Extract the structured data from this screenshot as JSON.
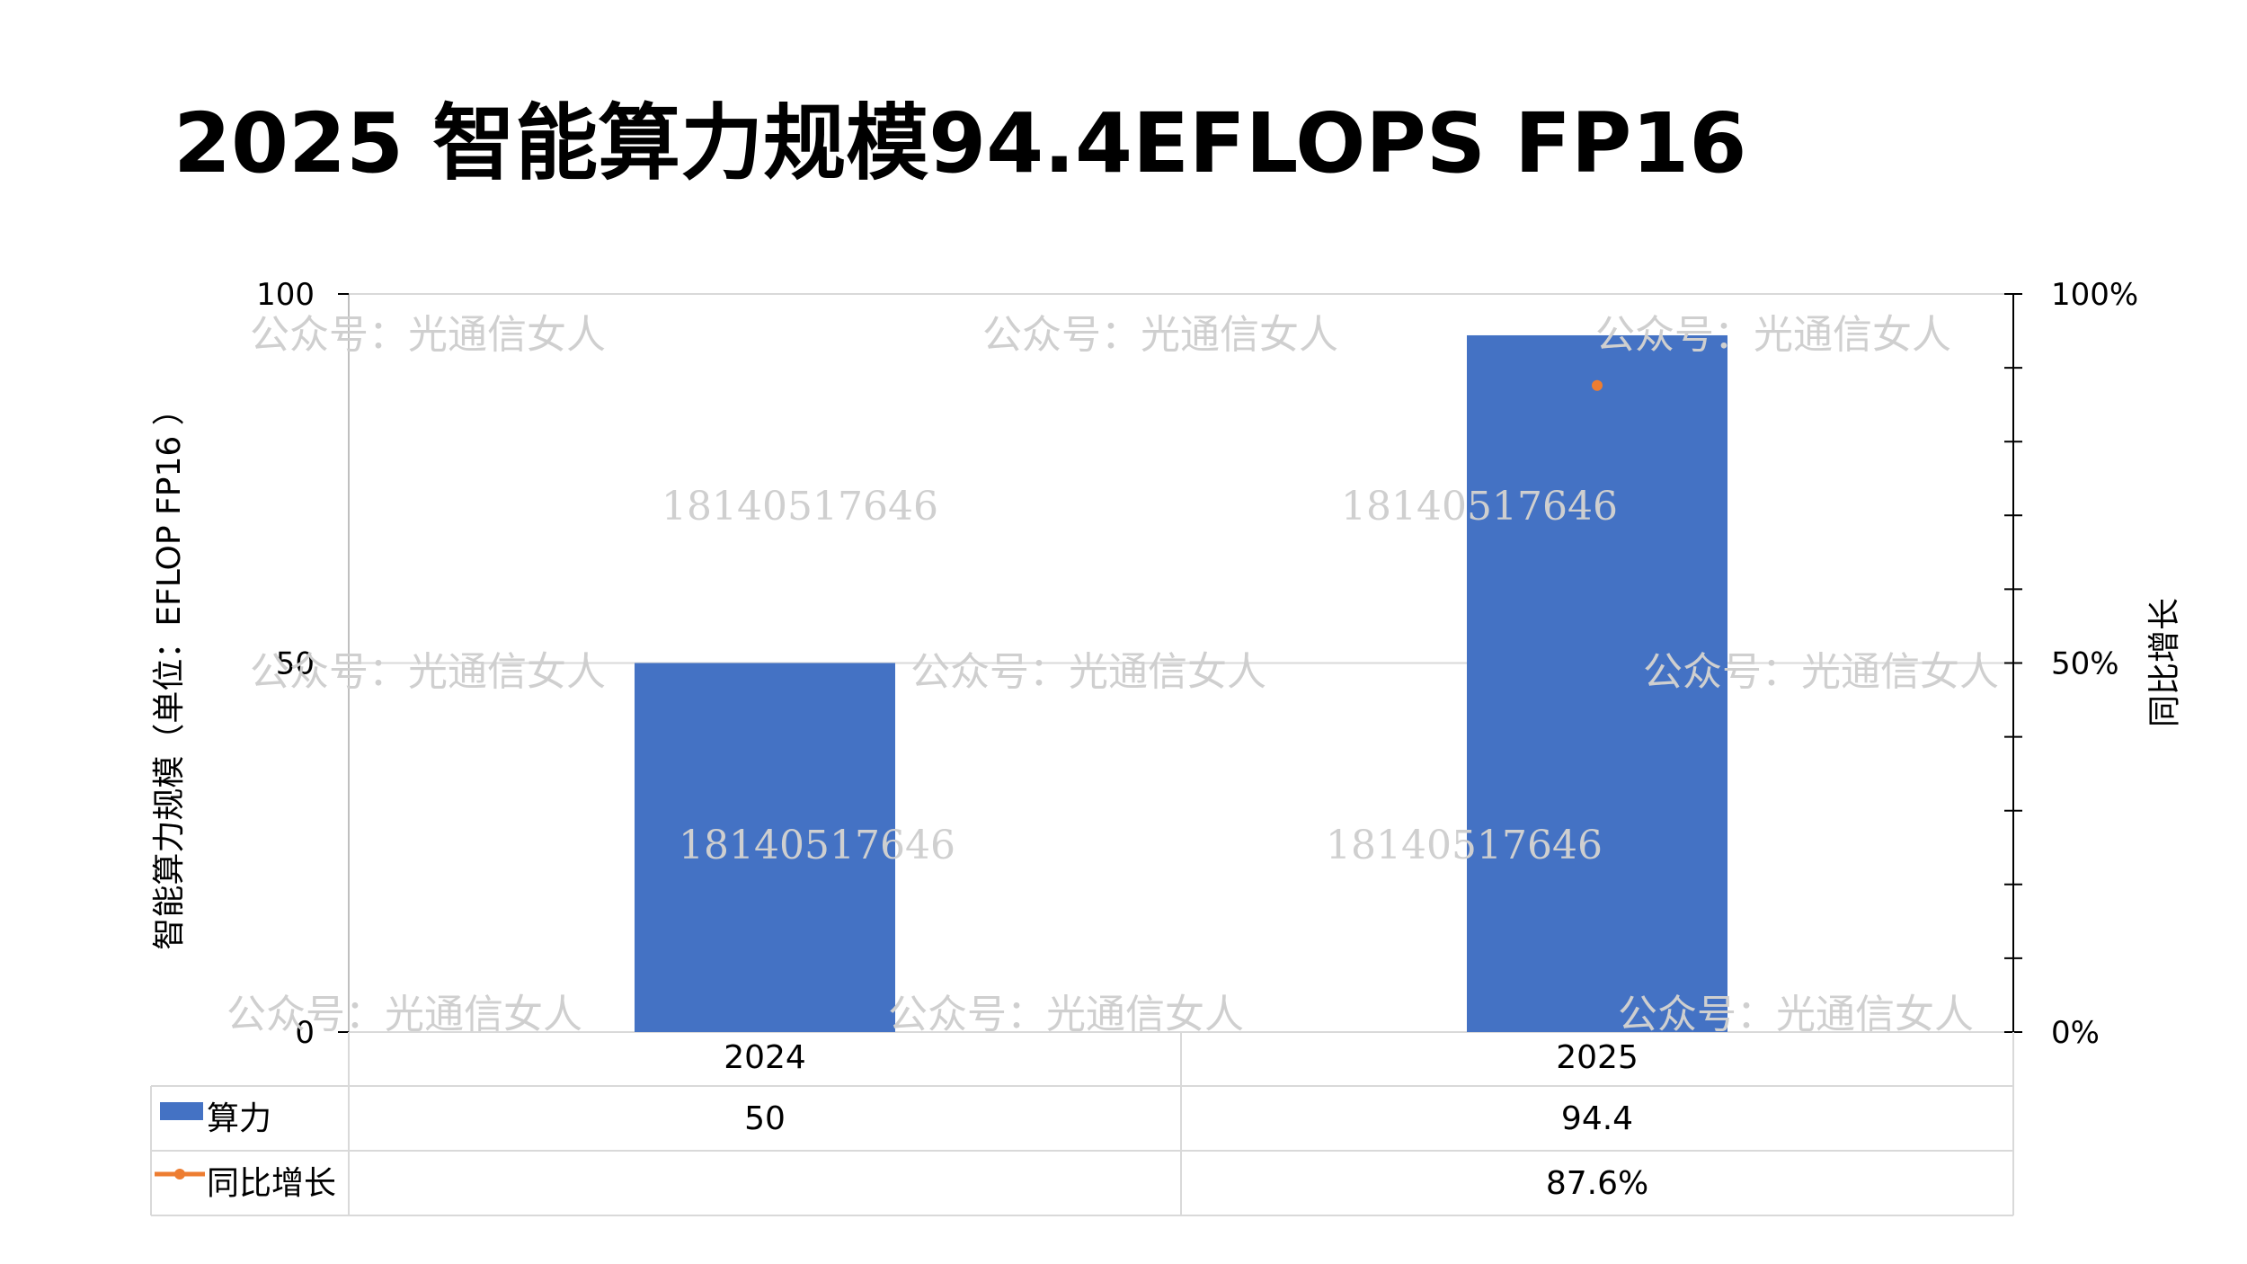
{
  "title": "2025 智能算力规模94.4EFLOPS FP16",
  "colors": {
    "bar": "#4472C4",
    "line": "#ED7D31",
    "grid": "#D9D9D9",
    "watermark": "#CFCFCF"
  },
  "watermarks": {
    "account": "公众号：光通信女人",
    "phone": "18140517646"
  },
  "chart_data": {
    "type": "bar",
    "categories": [
      "2024",
      "2025"
    ],
    "series": [
      {
        "name": "算力",
        "kind": "bar",
        "axis": "left",
        "values": [
          50,
          94.4
        ],
        "labels": [
          "50",
          "94.4"
        ]
      },
      {
        "name": "同比增长",
        "kind": "line",
        "axis": "right",
        "values": [
          null,
          87.6
        ],
        "labels": [
          "",
          "87.6%"
        ]
      }
    ],
    "ylabel": "智能算力规模（单位：EFLOP FP16 ）",
    "y2label": "同比增长",
    "ylim": [
      0,
      100
    ],
    "y2lim": [
      0,
      100
    ],
    "yticks": [
      "0",
      "50",
      "100"
    ],
    "y2ticks": [
      "0%",
      "50%",
      "100%"
    ],
    "data_table": true,
    "legend": "data-table"
  }
}
